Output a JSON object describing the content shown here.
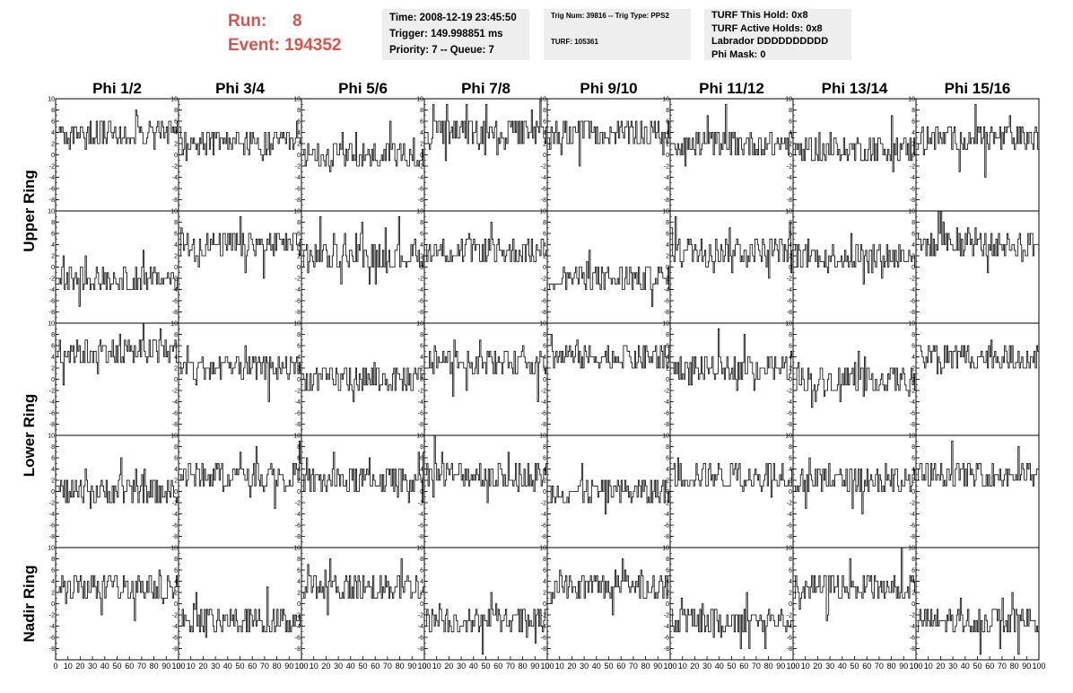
{
  "header": {
    "run_label": "Run:",
    "run_value": "8",
    "event_label": "Event:",
    "event_value": "194352"
  },
  "info_time": {
    "time": "Time: 2008-12-19 23:45:50",
    "trigger": "Trigger: 149.998851 ms",
    "priority": "Priority: 7 -- Queue: 7"
  },
  "info_trig": {
    "trig": "Trig Num: 39816 -- Trig Type: PPS2",
    "turf": "TURF: 105361"
  },
  "info_turf": {
    "this_hold": "TURF This Hold: 0x8",
    "active_holds": "TURF Active Holds: 0x8",
    "labrador": "Labrador DDDDDDDDDD",
    "phi_mask": "Phi Mask: 0"
  },
  "colors": {
    "header_red": "#d9534f",
    "box_bg": "#eeeeee",
    "trace": "#000000"
  },
  "chart_data": {
    "type": "line",
    "columns": [
      "Phi 1/2",
      "Phi 3/4",
      "Phi 5/6",
      "Phi 7/8",
      "Phi 9/10",
      "Phi 11/12",
      "Phi 13/14",
      "Phi 15/16"
    ],
    "rings": [
      "Upper Ring",
      "Lower Ring",
      "Nadir Ring"
    ],
    "rows_per_ring": 2,
    "xlim": [
      0,
      100
    ],
    "ylim": [
      -10,
      10
    ],
    "yticks": [
      "-8",
      "-6",
      "-4",
      "-2",
      "0",
      "2",
      "4",
      "6",
      "8",
      "10"
    ],
    "xticks": [
      "0",
      "10",
      "20",
      "30",
      "40",
      "50",
      "60",
      "70",
      "80",
      "90",
      "100"
    ],
    "n_samples": 100,
    "baseline_levels": [
      [
        4,
        2,
        0,
        4,
        4,
        2,
        1,
        3
      ],
      [
        -2,
        4,
        2,
        3,
        -2,
        3,
        2,
        4
      ],
      [
        5,
        2,
        0,
        3,
        4,
        2,
        0,
        4
      ],
      [
        0,
        3,
        2,
        3,
        0,
        3,
        2,
        3
      ],
      [
        3,
        -3,
        3,
        -3,
        3,
        -3,
        3,
        -3
      ]
    ],
    "noise_amplitude": 2.5
  }
}
